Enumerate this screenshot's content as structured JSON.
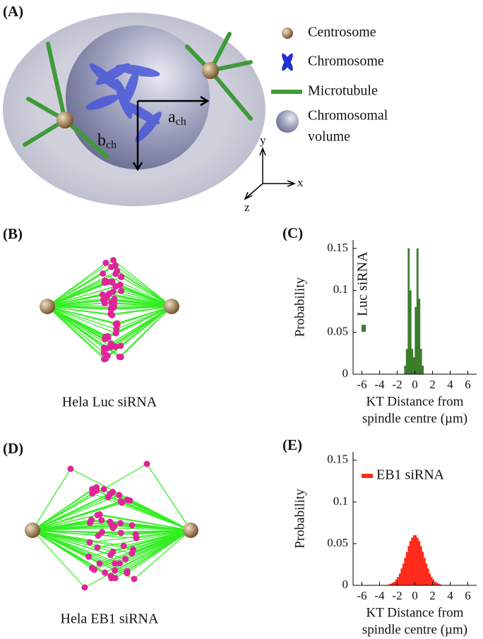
{
  "panels": {
    "a": "(A)",
    "b": "(B)",
    "d": "(D)"
  },
  "schematic": {
    "a_axis": {
      "main": "a",
      "sub": "ch"
    },
    "b_axis": {
      "main": "b",
      "sub": "ch"
    },
    "x": "x",
    "y": "y",
    "z": "z",
    "legend": [
      "Centrosome",
      "Chromosome",
      "Microtubule"
    ],
    "volume_legend": [
      "Chromosomal",
      "volume"
    ]
  },
  "captions": {
    "b": "Hela Luc siRNA",
    "d": "Hela EB1 siRNA"
  },
  "chart_data": [
    {
      "type": "histogram",
      "label": "(C)",
      "ylabel": "Probability",
      "xlabel": [
        "KT Distance from",
        "spindle centre (µm)"
      ],
      "bins": [
        -1.2,
        -1.0,
        -0.8,
        -0.6,
        -0.4,
        -0.2,
        0,
        0.2,
        0.4,
        0.6,
        0.8,
        1.0
      ],
      "series": [
        {
          "name": "Luc siRNA",
          "color": "#3b7d2d",
          "values": [
            0.01,
            0.03,
            0.15,
            0.1,
            0.03,
            0.02,
            0.08,
            0.15,
            0.09,
            0.03,
            0.01
          ]
        }
      ],
      "xlim": [
        -7,
        7
      ],
      "xticks": [
        -6,
        -4,
        -2,
        0,
        2,
        4,
        6
      ],
      "ylim": [
        0,
        0.16
      ],
      "yticks": [
        0,
        0.05,
        0.1,
        0.15
      ],
      "legend": "upper left",
      "legend_vertical": true
    },
    {
      "type": "histogram",
      "label": "(E)",
      "ylabel": "Probability",
      "xlabel": [
        "KT Distance from",
        "spindle centre (µm)"
      ],
      "bins": [
        -3.0,
        -2.8,
        -2.6,
        -2.4,
        -2.2,
        -2.0,
        -1.8,
        -1.6,
        -1.4,
        -1.2,
        -1.0,
        -0.8,
        -0.6,
        -0.4,
        -0.2,
        0,
        0.2,
        0.4,
        0.6,
        0.8,
        1.0,
        1.2,
        1.4,
        1.6,
        1.8,
        2.0,
        2.2,
        2.4,
        2.6,
        2.8,
        3.0
      ],
      "series": [
        {
          "name": "EB1 siRNA",
          "color": "#ff2b1c",
          "values": [
            0.001,
            0.002,
            0.003,
            0.004,
            0.007,
            0.01,
            0.014,
            0.02,
            0.026,
            0.033,
            0.04,
            0.047,
            0.053,
            0.057,
            0.06,
            0.06,
            0.057,
            0.053,
            0.047,
            0.04,
            0.033,
            0.026,
            0.02,
            0.014,
            0.01,
            0.007,
            0.004,
            0.003,
            0.002,
            0.001
          ]
        }
      ],
      "xlim": [
        -7,
        7
      ],
      "xticks": [
        -6,
        -4,
        -2,
        0,
        2,
        4,
        6
      ],
      "ylim": [
        0,
        0.16
      ],
      "yticks": [
        0,
        0.05,
        0.1,
        0.15
      ],
      "legend": "upper left",
      "legend_vertical": false
    }
  ]
}
